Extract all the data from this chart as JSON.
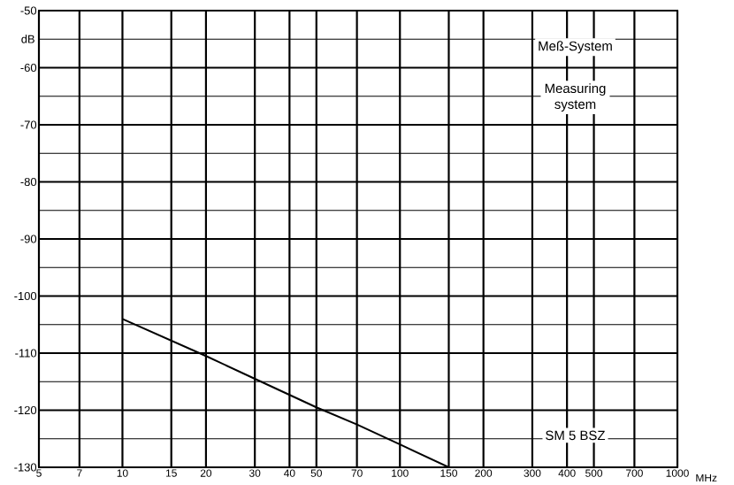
{
  "chart_data": {
    "type": "line",
    "ylabel": "dB",
    "xlabel": "MHz",
    "log": "x",
    "x": [
      10,
      20,
      30,
      50,
      70,
      100,
      150
    ],
    "series": [
      {
        "color": "#000000",
        "values": [
          -104,
          -110.5,
          -114.5,
          -119.5,
          -122.5,
          -126,
          -130
        ]
      }
    ],
    "xlim": [
      5,
      1000
    ],
    "xticks": [
      5,
      7,
      10,
      15,
      20,
      30,
      40,
      50,
      70,
      100,
      150,
      200,
      300,
      400,
      500,
      700,
      1000
    ],
    "ylim": [
      -130,
      -50
    ],
    "yticks": [
      -130,
      -120,
      -110,
      -100,
      -90,
      -80,
      -70,
      -60,
      -50
    ],
    "grid": true,
    "marker": "none",
    "line_style": "solid",
    "annotations": [
      "Meß-System",
      "Measuring system",
      "SM 5 BSZ"
    ]
  }
}
